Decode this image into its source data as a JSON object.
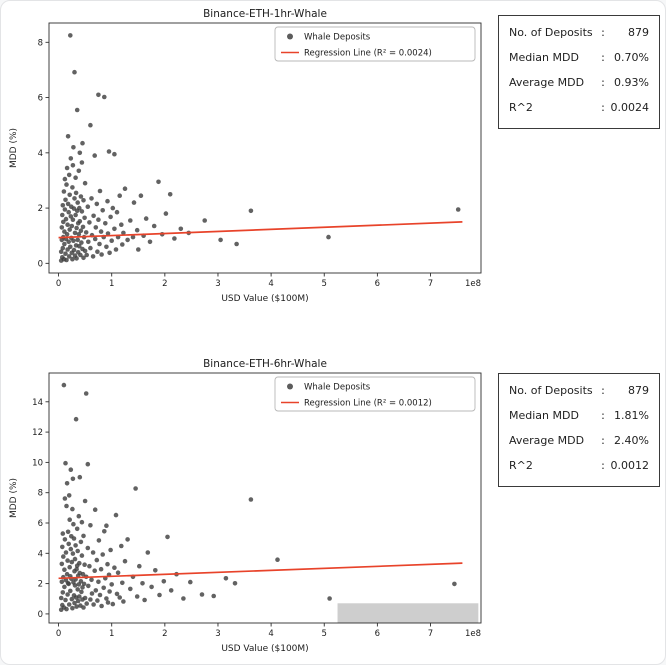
{
  "stats_boxes": [
    {
      "rows": [
        {
          "label": "No. of Deposits",
          "colon": ":",
          "value": "879"
        },
        {
          "label": "Median MDD",
          "colon": ":",
          "value": "0.70%"
        },
        {
          "label": "Average MDD",
          "colon": ":",
          "value": "0.93%"
        },
        {
          "label": "R^2",
          "colon": ":",
          "value": "0.0024"
        }
      ]
    },
    {
      "rows": [
        {
          "label": "No. of Deposits",
          "colon": ":",
          "value": "879"
        },
        {
          "label": "Median MDD",
          "colon": ":",
          "value": "1.81%"
        },
        {
          "label": "Average MDD",
          "colon": ":",
          "value": "2.40%"
        },
        {
          "label": "R^2",
          "colon": ":",
          "value": "0.0012"
        }
      ]
    }
  ],
  "chart_data": [
    {
      "type": "scatter",
      "title": "Binance-ETH-1hr-Whale",
      "xlabel": "USD Value ($100M)",
      "ylabel": "MDD (%)",
      "offset_label": "1e8",
      "xlim": [
        -0.18,
        7.95
      ],
      "ylim": [
        -0.35,
        8.7
      ],
      "xticks": [
        0,
        1,
        2,
        3,
        4,
        5,
        6,
        7
      ],
      "yticks": [
        0,
        2,
        4,
        6,
        8
      ],
      "grid": false,
      "legend_position": "upper right",
      "legend": [
        "Whale Deposits",
        "Regression Line (R² = 0.0024)"
      ],
      "point_color": "#404040",
      "line_color": "#e8432a",
      "regression": {
        "x0": 0.0,
        "y0": 0.93,
        "x1": 7.6,
        "y1": 1.5,
        "r2": 0.0024
      },
      "points": [
        [
          0.05,
          0.1
        ],
        [
          0.05,
          0.42
        ],
        [
          0.06,
          0.85
        ],
        [
          0.06,
          1.3
        ],
        [
          0.07,
          0.22
        ],
        [
          0.07,
          1.75
        ],
        [
          0.08,
          0.55
        ],
        [
          0.08,
          2.1
        ],
        [
          0.09,
          0.95
        ],
        [
          0.09,
          1.5
        ],
        [
          0.1,
          0.15
        ],
        [
          0.1,
          2.6
        ],
        [
          0.11,
          0.7
        ],
        [
          0.11,
          1.15
        ],
        [
          0.12,
          1.95
        ],
        [
          0.12,
          3.05
        ],
        [
          0.13,
          0.35
        ],
        [
          0.13,
          2.3
        ],
        [
          0.14,
          0.88
        ],
        [
          0.14,
          1.6
        ],
        [
          0.15,
          0.12
        ],
        [
          0.15,
          2.85
        ],
        [
          0.16,
          1.05
        ],
        [
          0.16,
          3.45
        ],
        [
          0.17,
          0.5
        ],
        [
          0.17,
          1.4
        ],
        [
          0.18,
          2.15
        ],
        [
          0.18,
          4.6
        ],
        [
          0.19,
          0.78
        ],
        [
          0.19,
          1.85
        ],
        [
          0.2,
          0.25
        ],
        [
          0.2,
          3.2
        ],
        [
          0.21,
          1.22
        ],
        [
          0.21,
          2.48
        ],
        [
          0.22,
          8.25
        ],
        [
          0.22,
          0.6
        ],
        [
          0.23,
          1.7
        ],
        [
          0.23,
          3.8
        ],
        [
          0.24,
          0.92
        ],
        [
          0.24,
          2.05
        ],
        [
          0.25,
          0.38
        ],
        [
          0.25,
          1.35
        ],
        [
          0.26,
          2.75
        ],
        [
          0.26,
          0.15
        ],
        [
          0.27,
          1.58
        ],
        [
          0.27,
          3.55
        ],
        [
          0.28,
          0.82
        ],
        [
          0.28,
          4.2
        ],
        [
          0.29,
          1.98
        ],
        [
          0.29,
          0.48
        ],
        [
          0.3,
          6.92
        ],
        [
          0.3,
          2.35
        ],
        [
          0.31,
          1.1
        ],
        [
          0.31,
          0.28
        ],
        [
          0.32,
          1.75
        ],
        [
          0.32,
          3.1
        ],
        [
          0.33,
          0.65
        ],
        [
          0.33,
          2.55
        ],
        [
          0.34,
          1.28
        ],
        [
          0.34,
          0.18
        ],
        [
          0.35,
          5.55
        ],
        [
          0.35,
          1.9
        ],
        [
          0.36,
          0.85
        ],
        [
          0.36,
          2.2
        ],
        [
          0.37,
          1.45
        ],
        [
          0.37,
          0.4
        ],
        [
          0.38,
          3.35
        ],
        [
          0.38,
          1.05
        ],
        [
          0.39,
          2.0
        ],
        [
          0.39,
          0.62
        ],
        [
          0.4,
          1.52
        ],
        [
          0.4,
          4.0
        ],
        [
          0.41,
          0.3
        ],
        [
          0.42,
          2.42
        ],
        [
          0.42,
          1.18
        ],
        [
          0.43,
          0.75
        ],
        [
          0.44,
          1.88
        ],
        [
          0.44,
          3.65
        ],
        [
          0.45,
          4.35
        ],
        [
          0.45,
          0.52
        ],
        [
          0.46,
          1.32
        ],
        [
          0.47,
          2.28
        ],
        [
          0.47,
          0.2
        ],
        [
          0.48,
          0.95
        ],
        [
          0.49,
          1.65
        ],
        [
          0.5,
          2.9
        ],
        [
          0.5,
          0.45
        ],
        [
          0.52,
          1.12
        ],
        [
          0.53,
          0.3
        ],
        [
          0.55,
          2.05
        ],
        [
          0.56,
          0.78
        ],
        [
          0.58,
          1.48
        ],
        [
          0.6,
          5.0
        ],
        [
          0.6,
          0.55
        ],
        [
          0.62,
          2.35
        ],
        [
          0.63,
          1.02
        ],
        [
          0.65,
          0.25
        ],
        [
          0.66,
          1.72
        ],
        [
          0.68,
          3.9
        ],
        [
          0.69,
          0.88
        ],
        [
          0.7,
          1.3
        ],
        [
          0.72,
          2.15
        ],
        [
          0.73,
          0.42
        ],
        [
          0.75,
          6.1
        ],
        [
          0.75,
          1.58
        ],
        [
          0.77,
          0.7
        ],
        [
          0.78,
          2.62
        ],
        [
          0.8,
          1.15
        ],
        [
          0.81,
          0.32
        ],
        [
          0.83,
          1.92
        ],
        [
          0.85,
          0.95
        ],
        [
          0.86,
          6.02
        ],
        [
          0.88,
          1.45
        ],
        [
          0.9,
          0.6
        ],
        [
          0.92,
          2.25
        ],
        [
          0.93,
          1.08
        ],
        [
          0.95,
          4.05
        ],
        [
          0.96,
          0.38
        ],
        [
          0.98,
          1.68
        ],
        [
          1.0,
          0.82
        ],
        [
          1.02,
          2.0
        ],
        [
          1.05,
          3.95
        ],
        [
          1.05,
          1.25
        ],
        [
          1.08,
          0.5
        ],
        [
          1.1,
          1.85
        ],
        [
          1.12,
          0.95
        ],
        [
          1.15,
          2.45
        ],
        [
          1.18,
          1.4
        ],
        [
          1.2,
          0.68
        ],
        [
          1.22,
          1.1
        ],
        [
          1.25,
          2.7
        ],
        [
          1.3,
          0.85
        ],
        [
          1.35,
          1.55
        ],
        [
          1.4,
          0.95
        ],
        [
          1.42,
          2.2
        ],
        [
          1.48,
          1.2
        ],
        [
          1.5,
          0.5
        ],
        [
          1.55,
          2.45
        ],
        [
          1.6,
          1.0
        ],
        [
          1.65,
          1.62
        ],
        [
          1.72,
          0.78
        ],
        [
          1.8,
          1.35
        ],
        [
          1.88,
          2.95
        ],
        [
          1.95,
          1.05
        ],
        [
          2.02,
          1.8
        ],
        [
          2.1,
          2.5
        ],
        [
          2.18,
          0.9
        ],
        [
          2.3,
          1.25
        ],
        [
          2.45,
          1.1
        ],
        [
          2.75,
          1.55
        ],
        [
          3.05,
          0.85
        ],
        [
          3.35,
          0.7
        ],
        [
          3.62,
          1.9
        ],
        [
          5.08,
          0.95
        ],
        [
          7.52,
          1.95
        ]
      ]
    },
    {
      "type": "scatter",
      "title": "Binance-ETH-6hr-Whale",
      "xlabel": "USD Value ($100M)",
      "ylabel": "MDD (%)",
      "offset_label": "1e8",
      "xlim": [
        -0.18,
        7.95
      ],
      "ylim": [
        -0.6,
        15.9
      ],
      "xticks": [
        0,
        1,
        2,
        3,
        4,
        5,
        6,
        7
      ],
      "yticks": [
        0,
        2,
        4,
        6,
        8,
        10,
        12,
        14
      ],
      "grid": false,
      "legend_position": "upper right",
      "legend": [
        "Whale Deposits",
        "Regression Line (R² = 0.0012)"
      ],
      "point_color": "#404040",
      "line_color": "#e8432a",
      "regression": {
        "x0": 0.0,
        "y0": 2.35,
        "x1": 7.6,
        "y1": 3.35,
        "r2": 0.0012
      },
      "watermark": {
        "x0": 5.25,
        "x1": 7.9,
        "y0": -0.6,
        "y1": 0.7,
        "color": "#c6c6c6"
      },
      "points": [
        [
          0.05,
          0.28
        ],
        [
          0.05,
          1.05
        ],
        [
          0.06,
          2.12
        ],
        [
          0.06,
          3.3
        ],
        [
          0.07,
          0.58
        ],
        [
          0.07,
          4.42
        ],
        [
          0.08,
          1.42
        ],
        [
          0.08,
          5.3
        ],
        [
          0.09,
          2.42
        ],
        [
          0.09,
          3.78
        ],
        [
          0.1,
          0.42
        ],
        [
          0.1,
          15.1
        ],
        [
          0.11,
          1.78
        ],
        [
          0.11,
          2.92
        ],
        [
          0.12,
          4.92
        ],
        [
          0.12,
          7.62
        ],
        [
          0.13,
          0.92
        ],
        [
          0.13,
          9.95
        ],
        [
          0.14,
          2.22
        ],
        [
          0.14,
          4.05
        ],
        [
          0.15,
          0.32
        ],
        [
          0.15,
          7.12
        ],
        [
          0.16,
          2.62
        ],
        [
          0.16,
          8.62
        ],
        [
          0.17,
          1.28
        ],
        [
          0.17,
          3.52
        ],
        [
          0.18,
          5.42
        ],
        [
          0.18,
          2.02
        ],
        [
          0.19,
          1.98
        ],
        [
          0.19,
          4.62
        ],
        [
          0.2,
          0.62
        ],
        [
          0.2,
          7.82
        ],
        [
          0.21,
          3.08
        ],
        [
          0.21,
          6.22
        ],
        [
          0.22,
          1.52
        ],
        [
          0.22,
          2.48
        ],
        [
          0.23,
          4.28
        ],
        [
          0.23,
          9.52
        ],
        [
          0.24,
          2.32
        ],
        [
          0.24,
          5.12
        ],
        [
          0.25,
          0.98
        ],
        [
          0.25,
          3.42
        ],
        [
          0.26,
          6.92
        ],
        [
          0.26,
          0.38
        ],
        [
          0.27,
          3.98
        ],
        [
          0.27,
          8.92
        ],
        [
          0.28,
          2.08
        ],
        [
          0.28,
          5.92
        ],
        [
          0.29,
          4.98
        ],
        [
          0.29,
          1.22
        ],
        [
          0.3,
          2.82
        ],
        [
          0.3,
          0.72
        ],
        [
          0.31,
          3.62
        ],
        [
          0.31,
          1.88
        ],
        [
          0.32,
          4.52
        ],
        [
          0.32,
          2.28
        ],
        [
          0.33,
          12.85
        ],
        [
          0.33,
          1.08
        ],
        [
          0.34,
          2.95
        ],
        [
          0.34,
          0.48
        ],
        [
          0.35,
          5.62
        ],
        [
          0.35,
          3.18
        ],
        [
          0.36,
          1.62
        ],
        [
          0.36,
          4.15
        ],
        [
          0.37,
          2.52
        ],
        [
          0.37,
          0.85
        ],
        [
          0.38,
          6.45
        ],
        [
          0.38,
          1.95
        ],
        [
          0.39,
          3.35
        ],
        [
          0.39,
          1.15
        ],
        [
          0.4,
          9.02
        ],
        [
          0.4,
          2.7
        ],
        [
          0.41,
          0.55
        ],
        [
          0.42,
          4.75
        ],
        [
          0.42,
          2.15
        ],
        [
          0.43,
          1.45
        ],
        [
          0.44,
          3.85
        ],
        [
          0.44,
          6.05
        ],
        [
          0.45,
          1.75
        ],
        [
          0.45,
          0.95
        ],
        [
          0.46,
          2.62
        ],
        [
          0.47,
          5.15
        ],
        [
          0.47,
          0.42
        ],
        [
          0.48,
          1.98
        ],
        [
          0.49,
          3.25
        ],
        [
          0.5,
          7.45
        ],
        [
          0.5,
          1.05
        ],
        [
          0.52,
          2.45
        ],
        [
          0.52,
          14.55
        ],
        [
          0.53,
          0.68
        ],
        [
          0.55,
          9.88
        ],
        [
          0.55,
          4.35
        ],
        [
          0.56,
          1.85
        ],
        [
          0.58,
          3.15
        ],
        [
          0.6,
          0.95
        ],
        [
          0.6,
          5.85
        ],
        [
          0.62,
          2.25
        ],
        [
          0.63,
          1.35
        ],
        [
          0.65,
          4.05
        ],
        [
          0.66,
          0.62
        ],
        [
          0.68,
          2.85
        ],
        [
          0.69,
          6.88
        ],
        [
          0.7,
          1.55
        ],
        [
          0.72,
          3.55
        ],
        [
          0.73,
          0.88
        ],
        [
          0.75,
          2.12
        ],
        [
          0.76,
          4.85
        ],
        [
          0.78,
          1.25
        ],
        [
          0.8,
          2.95
        ],
        [
          0.81,
          0.52
        ],
        [
          0.83,
          3.92
        ],
        [
          0.85,
          1.72
        ],
        [
          0.86,
          5.45
        ],
        [
          0.88,
          2.35
        ],
        [
          0.9,
          5.82
        ],
        [
          0.9,
          1.02
        ],
        [
          0.92,
          3.28
        ],
        [
          0.93,
          0.75
        ],
        [
          0.95,
          2.58
        ],
        [
          0.96,
          1.48
        ],
        [
          0.98,
          4.22
        ],
        [
          1.0,
          1.95
        ],
        [
          1.02,
          0.65
        ],
        [
          1.05,
          3.05
        ],
        [
          1.08,
          6.52
        ],
        [
          1.1,
          1.32
        ],
        [
          1.12,
          2.72
        ],
        [
          1.15,
          1.08
        ],
        [
          1.18,
          4.48
        ],
        [
          1.2,
          2.05
        ],
        [
          1.22,
          0.82
        ],
        [
          1.25,
          3.48
        ],
        [
          1.3,
          4.92
        ],
        [
          1.35,
          1.65
        ],
        [
          1.4,
          2.45
        ],
        [
          1.45,
          8.28
        ],
        [
          1.48,
          1.15
        ],
        [
          1.52,
          3.15
        ],
        [
          1.58,
          2.02
        ],
        [
          1.62,
          0.92
        ],
        [
          1.68,
          4.05
        ],
        [
          1.75,
          1.78
        ],
        [
          1.82,
          2.88
        ],
        [
          1.9,
          1.25
        ],
        [
          1.98,
          2.15
        ],
        [
          2.05,
          5.08
        ],
        [
          2.12,
          1.55
        ],
        [
          2.22,
          2.62
        ],
        [
          2.35,
          1.02
        ],
        [
          2.48,
          2.1
        ],
        [
          2.7,
          1.28
        ],
        [
          2.92,
          1.18
        ],
        [
          3.15,
          2.35
        ],
        [
          3.32,
          2.02
        ],
        [
          3.62,
          7.55
        ],
        [
          4.12,
          3.58
        ],
        [
          5.1,
          1.02
        ],
        [
          7.45,
          1.98
        ]
      ]
    }
  ]
}
